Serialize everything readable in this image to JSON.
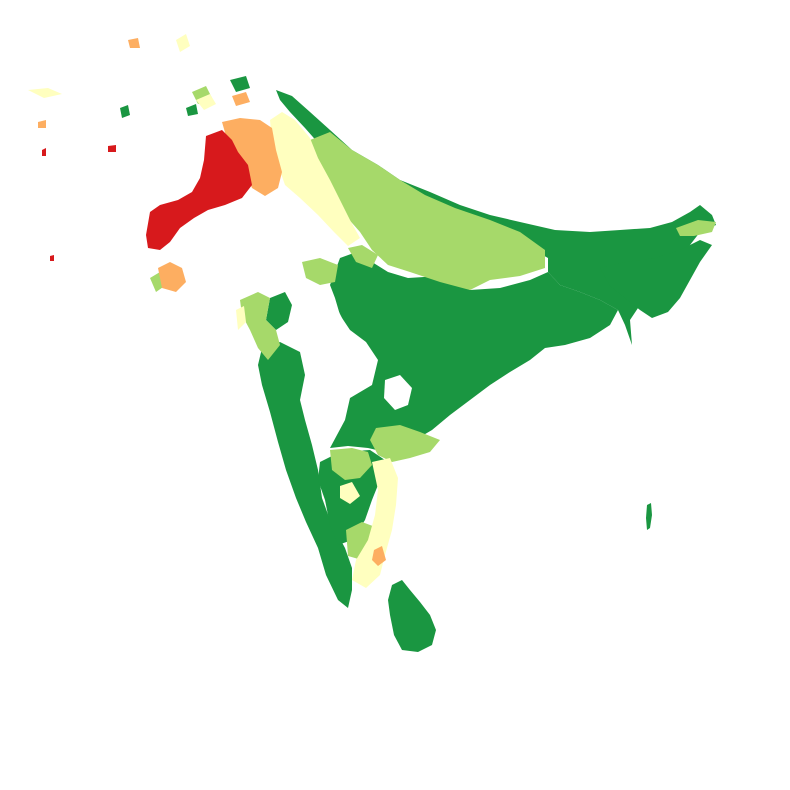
{
  "map": {
    "type": "choropleth",
    "region": "South Asia",
    "legend": "none",
    "labels": "none",
    "classes": [
      {
        "id": "class-1",
        "color": "#1a9641"
      },
      {
        "id": "class-2",
        "color": "#a6d96a"
      },
      {
        "id": "class-3",
        "color": "#ffffbf"
      },
      {
        "id": "class-4",
        "color": "#fdae61"
      },
      {
        "id": "class-5",
        "color": "#d7191c"
      }
    ]
  }
}
